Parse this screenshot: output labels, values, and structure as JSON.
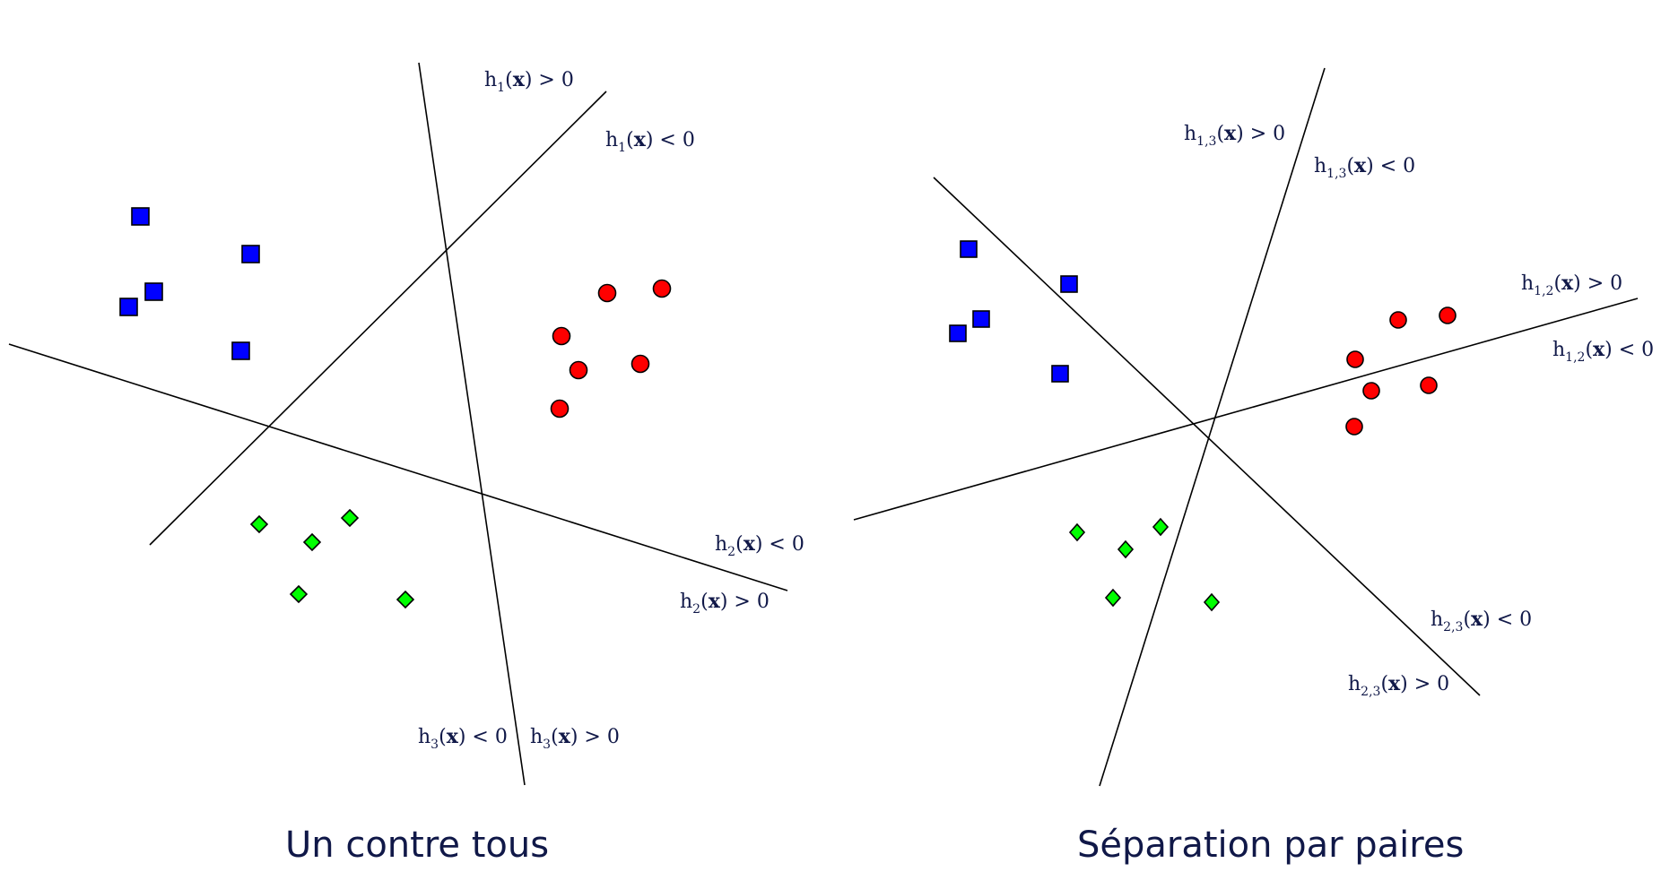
{
  "colors": {
    "class1": "#0000ff",
    "class2": "#ff0000",
    "class3": "#00ff00",
    "label_text": "#101848",
    "line": "#000000"
  },
  "legend_symbols": {
    "class1": "square",
    "class2": "circle",
    "class3": "diamond"
  },
  "panels": [
    {
      "caption": "Un contre tous",
      "labels": [
        {
          "fn": "h",
          "sub": "1",
          "var": "x",
          "op": "> 0"
        },
        {
          "fn": "h",
          "sub": "1",
          "var": "x",
          "op": "< 0"
        },
        {
          "fn": "h",
          "sub": "2",
          "var": "x",
          "op": "< 0"
        },
        {
          "fn": "h",
          "sub": "2",
          "var": "x",
          "op": "> 0"
        },
        {
          "fn": "h",
          "sub": "3",
          "var": "x",
          "op": "< 0"
        },
        {
          "fn": "h",
          "sub": "3",
          "var": "x",
          "op": "> 0"
        }
      ]
    },
    {
      "caption": "Séparation par paires",
      "labels": [
        {
          "fn": "h",
          "sub": "1,3",
          "var": "x",
          "op": "> 0"
        },
        {
          "fn": "h",
          "sub": "1,3",
          "var": "x",
          "op": "< 0"
        },
        {
          "fn": "h",
          "sub": "1,2",
          "var": "x",
          "op": "> 0"
        },
        {
          "fn": "h",
          "sub": "1,2",
          "var": "x",
          "op": "< 0"
        },
        {
          "fn": "h",
          "sub": "2,3",
          "var": "x",
          "op": "< 0"
        },
        {
          "fn": "h",
          "sub": "2,3",
          "var": "x",
          "op": "> 0"
        }
      ]
    }
  ]
}
